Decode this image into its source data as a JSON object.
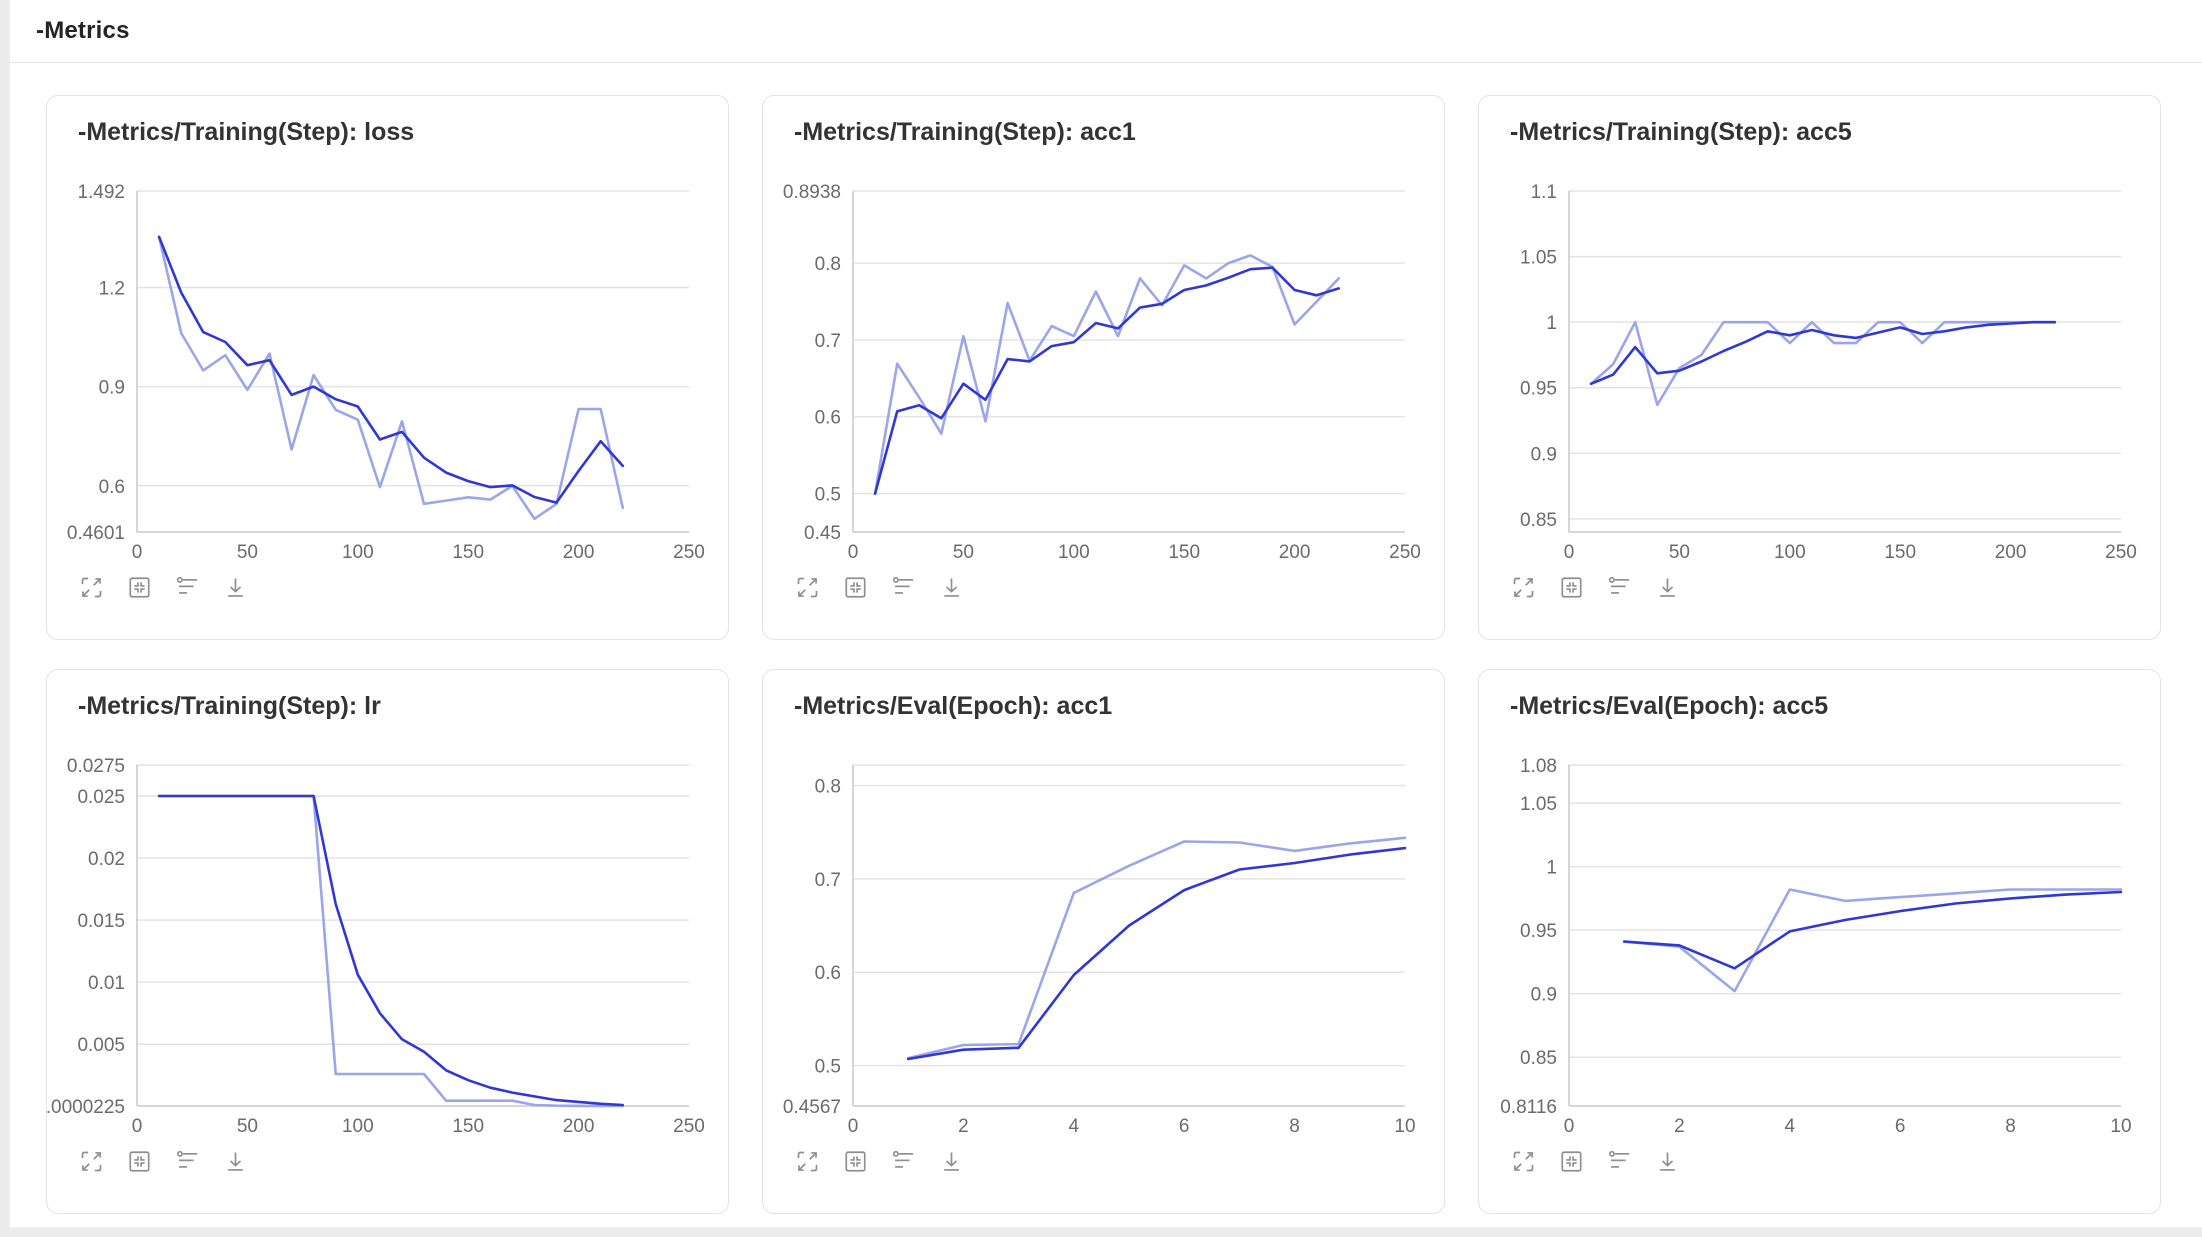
{
  "page": {
    "header_title": "-Metrics"
  },
  "colors": {
    "smoothed_line": "#2f38d4",
    "original_line": "#9ba5ea",
    "grid": "#e4e4e4",
    "axis": "#c9c9c9",
    "tick_text": "#6b6b6b"
  },
  "toolbar": {
    "icons": [
      "fullscreen",
      "restore-size",
      "axis-settings",
      "download"
    ]
  },
  "chart_data": [
    {
      "type": "line",
      "title": "-Metrics/Training(Step): loss",
      "xlabel": "",
      "ylabel": "",
      "xlim": [
        0,
        250
      ],
      "xticks": [
        0,
        50,
        100,
        150,
        200,
        250
      ],
      "ylim": [
        0.4601,
        1.492
      ],
      "yticks": [
        {
          "v": 1.492,
          "label": "1.492"
        },
        {
          "v": 1.2,
          "label": "1.2"
        },
        {
          "v": 0.9,
          "label": "0.9"
        },
        {
          "v": 0.6,
          "label": "0.6"
        },
        {
          "v": 0.4601,
          "label": "0.4601"
        }
      ],
      "x": [
        10,
        20,
        30,
        40,
        50,
        60,
        70,
        80,
        90,
        100,
        110,
        120,
        130,
        140,
        150,
        160,
        170,
        180,
        190,
        200,
        210,
        220
      ],
      "series": [
        {
          "name": "original",
          "values": [
            1.353,
            1.062,
            0.949,
            0.995,
            0.89,
            1.0,
            0.71,
            0.935,
            0.83,
            0.8,
            0.596,
            0.795,
            0.545,
            0.555,
            0.565,
            0.558,
            0.6,
            0.5,
            0.545,
            0.832,
            0.832,
            0.533
          ]
        },
        {
          "name": "smoothed",
          "values": [
            1.353,
            1.185,
            1.065,
            1.035,
            0.965,
            0.98,
            0.875,
            0.9,
            0.862,
            0.84,
            0.74,
            0.763,
            0.685,
            0.64,
            0.614,
            0.596,
            0.601,
            0.566,
            0.549,
            0.645,
            0.735,
            0.66
          ]
        }
      ]
    },
    {
      "type": "line",
      "title": "-Metrics/Training(Step): acc1",
      "xlabel": "",
      "ylabel": "",
      "xlim": [
        0,
        250
      ],
      "xticks": [
        0,
        50,
        100,
        150,
        200,
        250
      ],
      "ylim": [
        0.45,
        0.8938
      ],
      "yticks": [
        {
          "v": 0.8938,
          "label": "0.8938"
        },
        {
          "v": 0.8,
          "label": "0.8"
        },
        {
          "v": 0.7,
          "label": "0.7"
        },
        {
          "v": 0.6,
          "label": "0.6"
        },
        {
          "v": 0.5,
          "label": "0.5"
        },
        {
          "v": 0.45,
          "label": "0.45"
        }
      ],
      "x": [
        10,
        20,
        30,
        40,
        50,
        60,
        70,
        80,
        90,
        100,
        110,
        120,
        130,
        140,
        150,
        160,
        170,
        180,
        190,
        200,
        210,
        220
      ],
      "series": [
        {
          "name": "original",
          "values": [
            0.5,
            0.669,
            0.625,
            0.578,
            0.705,
            0.594,
            0.748,
            0.673,
            0.718,
            0.705,
            0.763,
            0.705,
            0.78,
            0.745,
            0.797,
            0.78,
            0.8,
            0.81,
            0.795,
            0.72,
            0.75,
            0.78
          ]
        },
        {
          "name": "smoothed",
          "values": [
            0.5,
            0.607,
            0.615,
            0.598,
            0.643,
            0.622,
            0.675,
            0.672,
            0.692,
            0.697,
            0.722,
            0.715,
            0.742,
            0.747,
            0.765,
            0.771,
            0.781,
            0.792,
            0.794,
            0.765,
            0.758,
            0.767
          ]
        }
      ]
    },
    {
      "type": "line",
      "title": "-Metrics/Training(Step): acc5",
      "xlabel": "",
      "ylabel": "",
      "xlim": [
        0,
        250
      ],
      "xticks": [
        0,
        50,
        100,
        150,
        200,
        250
      ],
      "ylim": [
        0.84,
        1.1
      ],
      "yticks": [
        {
          "v": 1.1,
          "label": "1.1"
        },
        {
          "v": 1.05,
          "label": "1.05"
        },
        {
          "v": 1.0,
          "label": "1"
        },
        {
          "v": 0.95,
          "label": "0.95"
        },
        {
          "v": 0.9,
          "label": "0.9"
        },
        {
          "v": 0.85,
          "label": "0.85"
        }
      ],
      "x": [
        10,
        20,
        30,
        40,
        50,
        60,
        70,
        80,
        90,
        100,
        110,
        120,
        130,
        140,
        150,
        160,
        170,
        180,
        190,
        200,
        210,
        220
      ],
      "series": [
        {
          "name": "original",
          "values": [
            0.953,
            0.968,
            1.0,
            0.937,
            0.965,
            0.975,
            1.0,
            1.0,
            1.0,
            0.984,
            1.0,
            0.984,
            0.984,
            1.0,
            1.0,
            0.984,
            1.0,
            1.0,
            1.0,
            1.0,
            1.0,
            1.0
          ]
        },
        {
          "name": "smoothed",
          "values": [
            0.953,
            0.96,
            0.981,
            0.961,
            0.963,
            0.97,
            0.978,
            0.985,
            0.993,
            0.99,
            0.994,
            0.99,
            0.988,
            0.992,
            0.996,
            0.991,
            0.993,
            0.996,
            0.998,
            0.999,
            1.0,
            1.0
          ]
        }
      ]
    },
    {
      "type": "line",
      "title": "-Metrics/Training(Step): lr",
      "xlabel": "",
      "ylabel": "",
      "xlim": [
        0,
        250
      ],
      "xticks": [
        0,
        50,
        100,
        150,
        200,
        250
      ],
      "ylim": [
        2.25e-05,
        0.0275
      ],
      "yticks": [
        {
          "v": 0.0275,
          "label": "0.0275"
        },
        {
          "v": 0.025,
          "label": "0.025"
        },
        {
          "v": 0.02,
          "label": "0.02"
        },
        {
          "v": 0.015,
          "label": "0.015"
        },
        {
          "v": 0.01,
          "label": "0.01"
        },
        {
          "v": 0.005,
          "label": "0.005"
        },
        {
          "v": 2.25e-05,
          "label": ".0000225"
        }
      ],
      "x": [
        10,
        20,
        30,
        40,
        50,
        60,
        70,
        80,
        90,
        100,
        110,
        120,
        130,
        140,
        150,
        160,
        170,
        180,
        190,
        200,
        210,
        220
      ],
      "series": [
        {
          "name": "original",
          "values": [
            0.025,
            0.025,
            0.025,
            0.025,
            0.025,
            0.025,
            0.025,
            0.025,
            0.0026,
            0.0026,
            0.0026,
            0.0026,
            0.0026,
            0.00045,
            0.00045,
            0.00045,
            0.00045,
            0.0001,
            5e-05,
            3e-05,
            2.25e-05,
            2.25e-05
          ]
        },
        {
          "name": "smoothed",
          "values": [
            0.025,
            0.025,
            0.025,
            0.025,
            0.025,
            0.025,
            0.025,
            0.025,
            0.0163,
            0.0106,
            0.0075,
            0.0054,
            0.0044,
            0.0029,
            0.0021,
            0.0015,
            0.0011,
            0.0008,
            0.0005,
            0.00035,
            0.0002,
            0.0001
          ]
        }
      ]
    },
    {
      "type": "line",
      "title": "-Metrics/Eval(Epoch): acc1",
      "xlabel": "",
      "ylabel": "",
      "xlim": [
        0,
        10
      ],
      "xticks": [
        0,
        2,
        4,
        6,
        8,
        10
      ],
      "ylim": [
        0.4567,
        0.822
      ],
      "yticks": [
        {
          "v": 0.822,
          "label": ""
        },
        {
          "v": 0.8,
          "label": "0.8"
        },
        {
          "v": 0.7,
          "label": "0.7"
        },
        {
          "v": 0.6,
          "label": "0.6"
        },
        {
          "v": 0.5,
          "label": "0.5"
        },
        {
          "v": 0.4567,
          "label": "0.4567"
        }
      ],
      "x": [
        1,
        2,
        3,
        4,
        5,
        6,
        7,
        8,
        9,
        10
      ],
      "series": [
        {
          "name": "original",
          "values": [
            0.508,
            0.522,
            0.523,
            0.685,
            0.714,
            0.74,
            0.739,
            0.73,
            0.738,
            0.744
          ]
        },
        {
          "name": "smoothed",
          "values": [
            0.507,
            0.517,
            0.519,
            0.597,
            0.65,
            0.688,
            0.71,
            0.717,
            0.726,
            0.733
          ]
        }
      ]
    },
    {
      "type": "line",
      "title": "-Metrics/Eval(Epoch): acc5",
      "xlabel": "",
      "ylabel": "",
      "xlim": [
        0,
        10
      ],
      "xticks": [
        0,
        2,
        4,
        6,
        8,
        10
      ],
      "ylim": [
        0.8116,
        1.08
      ],
      "yticks": [
        {
          "v": 1.08,
          "label": "1.08"
        },
        {
          "v": 1.05,
          "label": "1.05"
        },
        {
          "v": 1.0,
          "label": "1"
        },
        {
          "v": 0.95,
          "label": "0.95"
        },
        {
          "v": 0.9,
          "label": "0.9"
        },
        {
          "v": 0.85,
          "label": "0.85"
        },
        {
          "v": 0.8116,
          "label": "0.8116"
        }
      ],
      "x": [
        1,
        2,
        3,
        4,
        5,
        6,
        7,
        8,
        9,
        10
      ],
      "series": [
        {
          "name": "original",
          "values": [
            0.941,
            0.937,
            0.902,
            0.982,
            0.973,
            0.976,
            0.979,
            0.982,
            0.982,
            0.982
          ]
        },
        {
          "name": "smoothed",
          "values": [
            0.941,
            0.938,
            0.92,
            0.949,
            0.958,
            0.965,
            0.971,
            0.975,
            0.978,
            0.98
          ]
        }
      ]
    }
  ]
}
